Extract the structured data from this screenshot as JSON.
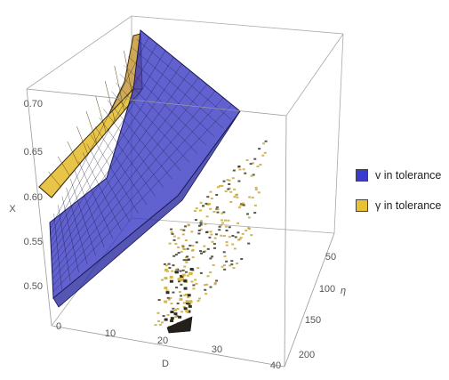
{
  "chart_data": {
    "type": "3d-surface",
    "axes": {
      "x": {
        "label": "D",
        "range": [
          0,
          40
        ],
        "ticks": [
          "0",
          "10",
          "20",
          "30",
          "40"
        ]
      },
      "y": {
        "label": "η",
        "range": [
          30,
          200
        ],
        "ticks": [
          "50",
          "100",
          "150",
          "200"
        ]
      },
      "z": {
        "label": "X",
        "range": [
          0.47,
          0.72
        ],
        "ticks": [
          "0.50",
          "0.55",
          "0.60",
          "0.65",
          "0.70"
        ]
      }
    },
    "grid": false,
    "legend_position": "right",
    "series": [
      {
        "name": "v in tolerance",
        "color": "#3a3acc"
      },
      {
        "name": "γ in tolerance",
        "color": "#e8c232"
      }
    ]
  }
}
